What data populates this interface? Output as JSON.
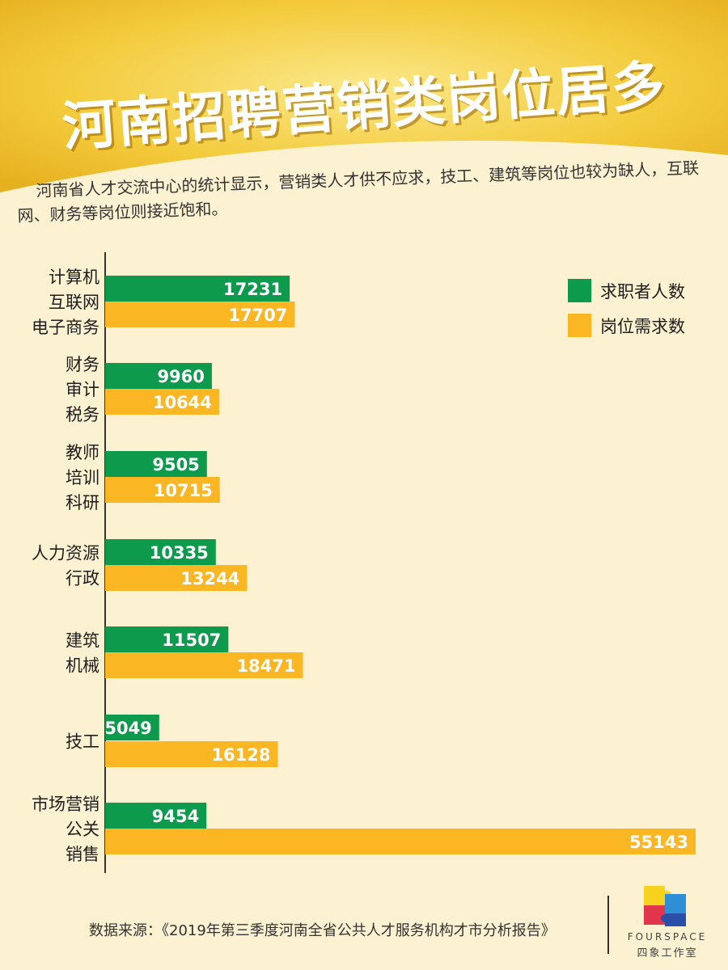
{
  "title": "河南招聘营销类岗位居多",
  "intro": "河南省人才交流中心的统计显示，营销类人才供不应求，技工、建筑等岗位也较为缺人，互联网、财务等岗位则接近饱和。",
  "colors": {
    "seekers": "#0e9a4d",
    "demand": "#fbb624",
    "header": "#f3c52e",
    "background": "#fcf1d1"
  },
  "chart_data": {
    "type": "bar",
    "orientation": "horizontal",
    "title": "",
    "xlabel": "",
    "ylabel": "",
    "legend_position": "top-right",
    "grid": false,
    "xlim": [
      0,
      55143
    ],
    "categories": [
      [
        "计算机",
        "互联网",
        "电子商务"
      ],
      [
        "财务",
        "审计",
        "税务"
      ],
      [
        "教师",
        "培训",
        "科研"
      ],
      [
        "人力资源",
        "行政"
      ],
      [
        "建筑",
        "机械"
      ],
      [
        "技工"
      ],
      [
        "市场营销",
        "公关",
        "销售"
      ]
    ],
    "series": [
      {
        "name": "求职者人数",
        "color": "#0e9a4d",
        "values": [
          17231,
          9960,
          9505,
          10335,
          11507,
          5049,
          9454
        ]
      },
      {
        "name": "岗位需求数",
        "color": "#fbb624",
        "values": [
          17707,
          10644,
          10715,
          13244,
          18471,
          16128,
          55143
        ]
      }
    ]
  },
  "source": "数据来源：《2019年第三季度河南全省公共人才服务机构才市分析报告》",
  "logo": {
    "en": "FOURSPACE",
    "cn": "四象工作室"
  }
}
